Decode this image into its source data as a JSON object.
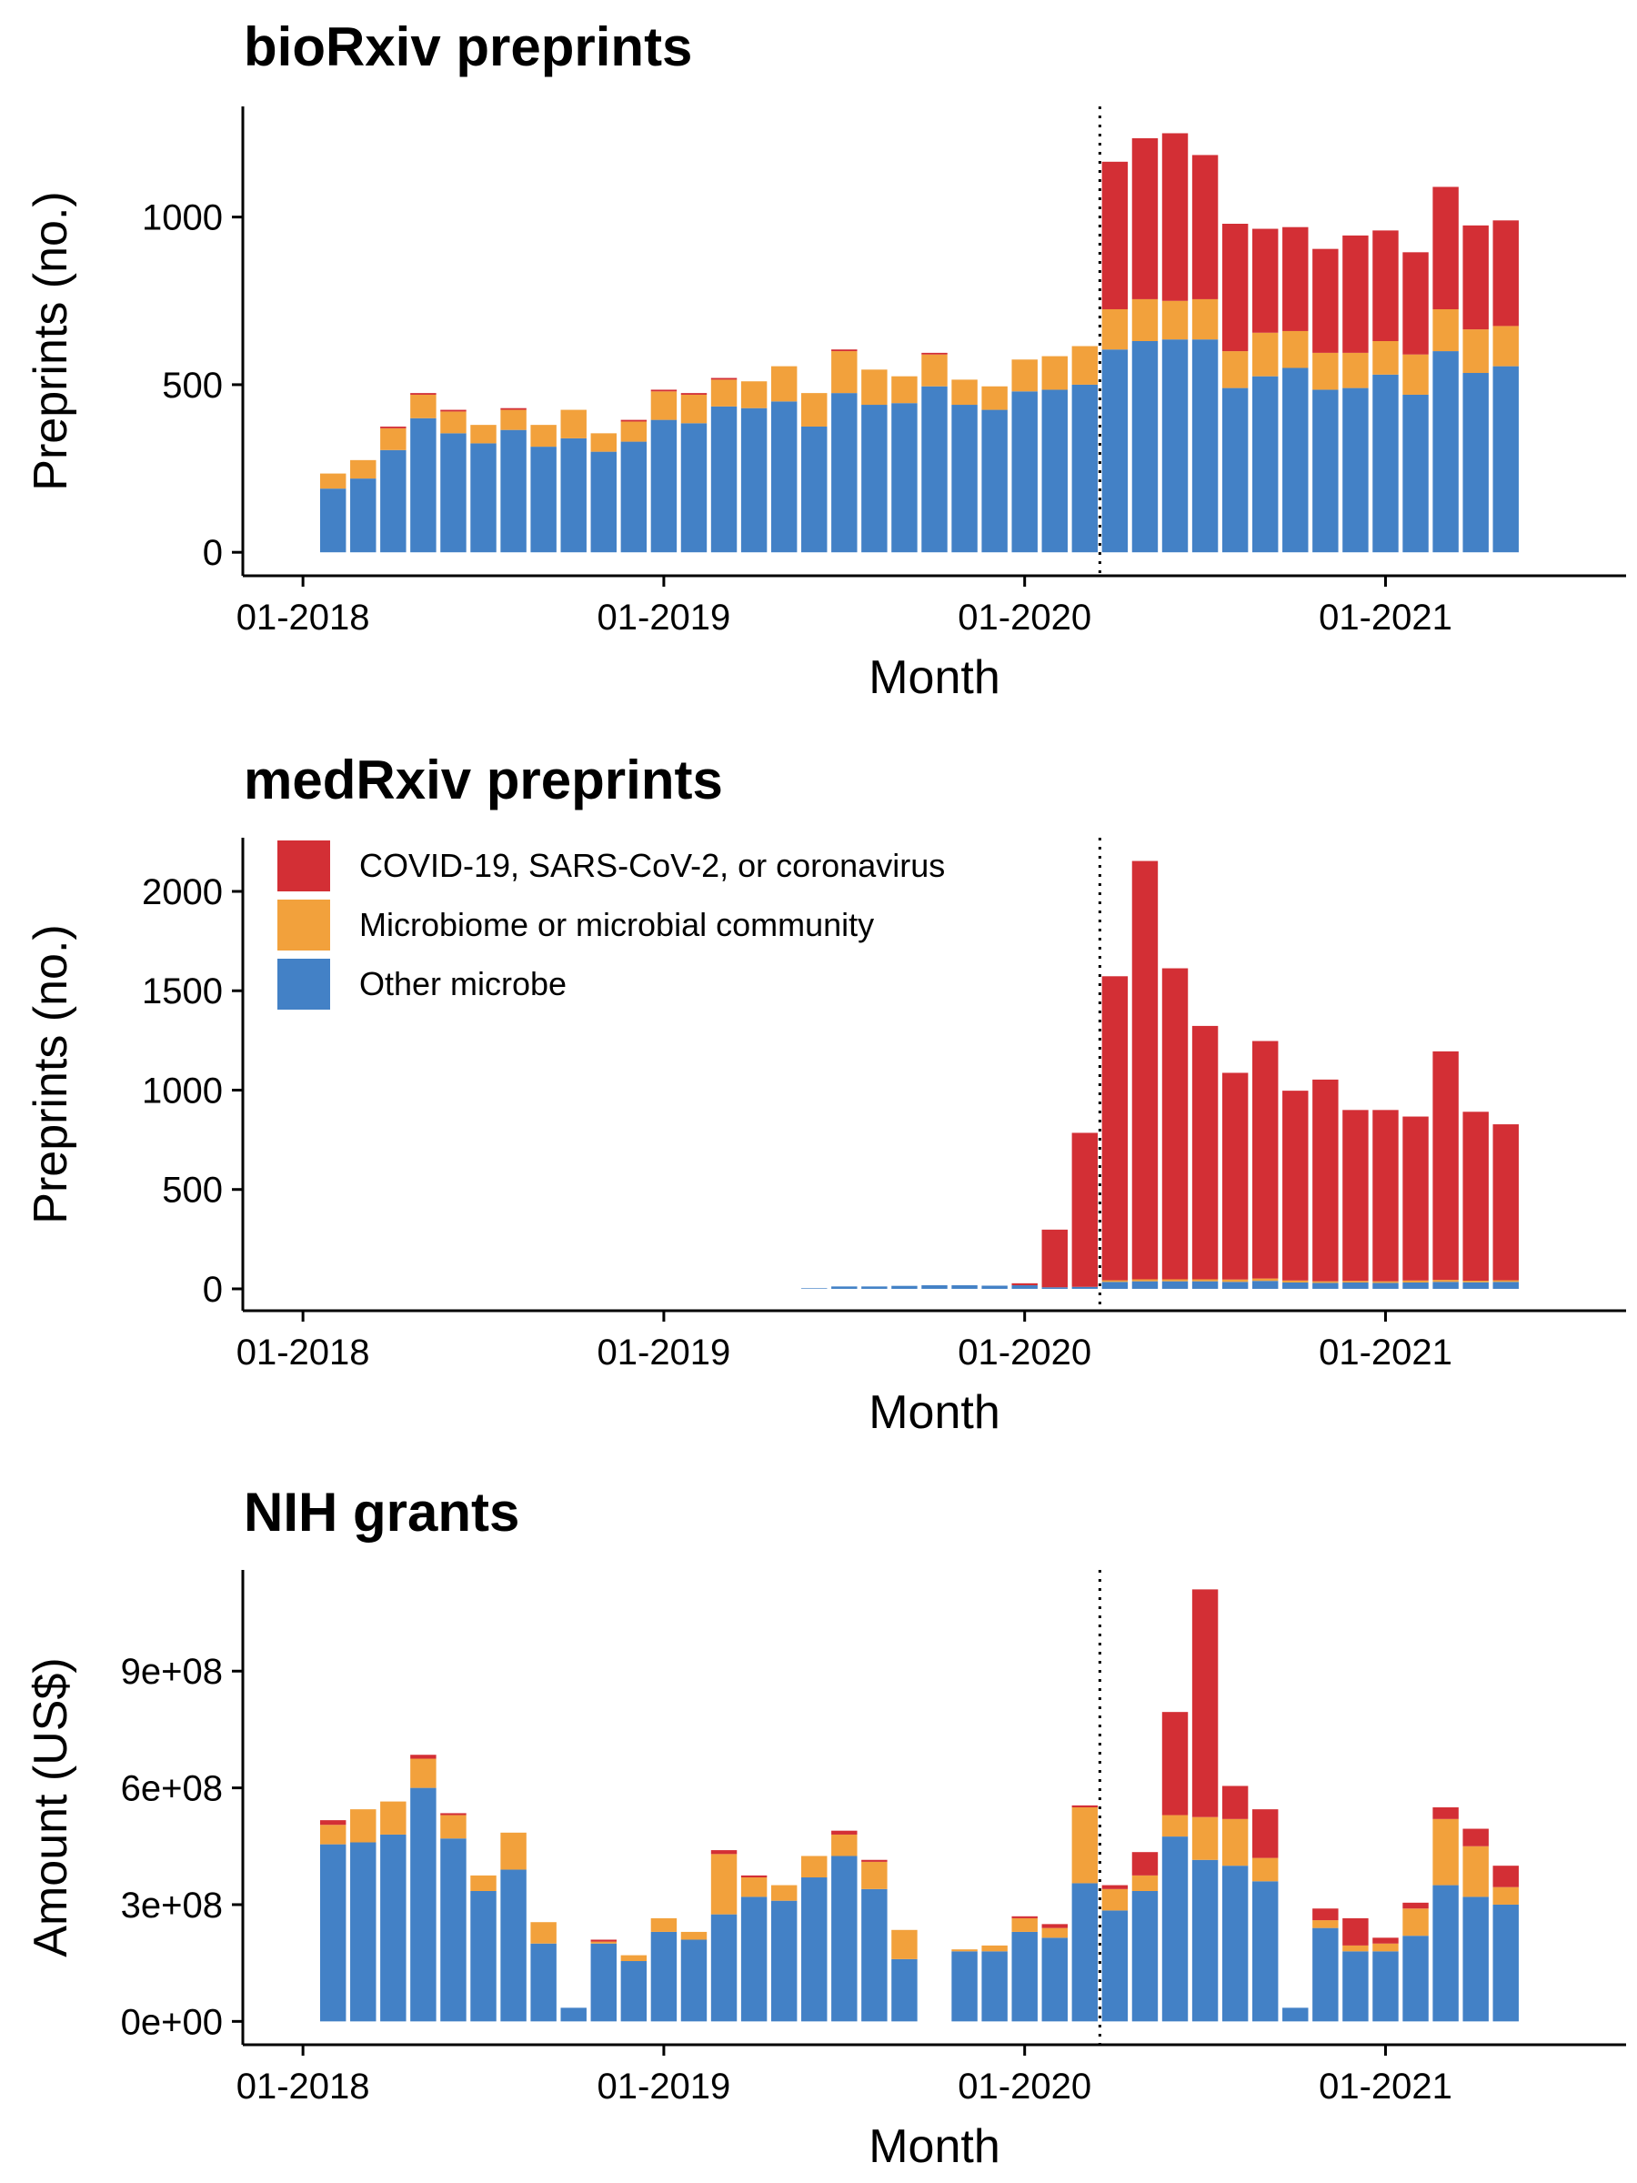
{
  "colors": {
    "covid": "#d32f35",
    "microbiome": "#f2a13c",
    "other": "#4381c6",
    "axis": "#000000"
  },
  "legend": {
    "items": [
      {
        "key": "covid",
        "label": "COVID-19, SARS-CoV-2, or coronavirus"
      },
      {
        "key": "microbiome",
        "label": "Microbiome or microbial community"
      },
      {
        "key": "other",
        "label": "Other microbe"
      }
    ]
  },
  "chart_data": [
    {
      "type": "bar",
      "stacked": true,
      "title": "bioRxiv preprints",
      "xlabel": "Month",
      "ylabel": "Preprints (no.)",
      "x_ticks": [
        "01-2018",
        "01-2019",
        "01-2020",
        "01-2021"
      ],
      "y_ticks": [
        "0",
        "500",
        "1000"
      ],
      "y_tick_values": [
        0,
        500,
        1000
      ],
      "ylim": [
        -70,
        1330
      ],
      "xlim": [
        "2017-11",
        "2021-09"
      ],
      "reference_line": "2020-03",
      "months": [
        "2018-02",
        "2018-03",
        "2018-04",
        "2018-05",
        "2018-06",
        "2018-07",
        "2018-08",
        "2018-09",
        "2018-10",
        "2018-11",
        "2018-12",
        "2019-01",
        "2019-02",
        "2019-03",
        "2019-04",
        "2019-05",
        "2019-06",
        "2019-07",
        "2019-08",
        "2019-09",
        "2019-10",
        "2019-11",
        "2019-12",
        "2020-01",
        "2020-02",
        "2020-03",
        "2020-04",
        "2020-05",
        "2020-06",
        "2020-07",
        "2020-08",
        "2020-09",
        "2020-10",
        "2020-11",
        "2020-12",
        "2021-01",
        "2021-02",
        "2021-03",
        "2021-04",
        "2021-05"
      ],
      "series": [
        {
          "key": "other",
          "name": "Other microbe",
          "values": [
            190,
            220,
            305,
            400,
            355,
            325,
            365,
            315,
            340,
            300,
            330,
            395,
            385,
            435,
            430,
            450,
            375,
            475,
            440,
            445,
            495,
            440,
            425,
            480,
            485,
            500,
            605,
            630,
            635,
            635,
            490,
            525,
            550,
            485,
            490,
            530,
            470,
            600,
            535,
            555
          ]
        },
        {
          "key": "microbiome",
          "name": "Microbiome or microbial community",
          "values": [
            45,
            55,
            65,
            70,
            65,
            55,
            60,
            65,
            85,
            55,
            60,
            85,
            85,
            80,
            80,
            105,
            100,
            125,
            105,
            80,
            95,
            75,
            70,
            95,
            100,
            115,
            120,
            125,
            115,
            120,
            110,
            130,
            110,
            110,
            105,
            100,
            120,
            125,
            130,
            120
          ]
        },
        {
          "key": "covid",
          "name": "COVID-19, SARS-CoV-2, or coronavirus",
          "values": [
            0,
            0,
            5,
            5,
            5,
            0,
            5,
            0,
            0,
            0,
            5,
            5,
            5,
            5,
            0,
            0,
            0,
            5,
            0,
            0,
            5,
            0,
            0,
            0,
            0,
            0,
            440,
            480,
            500,
            430,
            380,
            310,
            310,
            310,
            350,
            330,
            305,
            365,
            310,
            315
          ]
        }
      ]
    },
    {
      "type": "bar",
      "stacked": true,
      "title": "medRxiv preprints",
      "xlabel": "Month",
      "ylabel": "Preprints (no.)",
      "x_ticks": [
        "01-2018",
        "01-2019",
        "01-2020",
        "01-2021"
      ],
      "y_ticks": [
        "0",
        "500",
        "1000",
        "1500",
        "2000"
      ],
      "y_tick_values": [
        0,
        500,
        1000,
        1500,
        2000
      ],
      "ylim": [
        -110,
        2270
      ],
      "xlim": [
        "2017-11",
        "2021-09"
      ],
      "reference_line": "2020-03",
      "legend_position": "top-left",
      "months": [
        "2019-06",
        "2019-07",
        "2019-08",
        "2019-09",
        "2019-10",
        "2019-11",
        "2019-12",
        "2020-01",
        "2020-02",
        "2020-03",
        "2020-04",
        "2020-05",
        "2020-06",
        "2020-07",
        "2020-08",
        "2020-09",
        "2020-10",
        "2020-11",
        "2020-12",
        "2021-01",
        "2021-02",
        "2021-03",
        "2021-04",
        "2021-05"
      ],
      "series": [
        {
          "key": "other",
          "name": "Other microbe",
          "values": [
            3,
            12,
            12,
            15,
            18,
            18,
            16,
            18,
            8,
            10,
            35,
            38,
            38,
            38,
            35,
            40,
            32,
            30,
            32,
            30,
            32,
            35,
            33,
            35
          ]
        },
        {
          "key": "microbiome",
          "name": "Microbiome or microbial community",
          "values": [
            0,
            0,
            0,
            0,
            0,
            0,
            0,
            0,
            0,
            0,
            8,
            10,
            10,
            10,
            12,
            12,
            10,
            8,
            8,
            8,
            10,
            10,
            8,
            8
          ]
        },
        {
          "key": "covid",
          "name": "COVID-19, SARS-CoV-2, or coronavirus",
          "values": [
            0,
            0,
            0,
            0,
            0,
            0,
            0,
            10,
            290,
            775,
            1530,
            2105,
            1565,
            1275,
            1040,
            1195,
            955,
            1015,
            860,
            862,
            825,
            1150,
            850,
            785
          ]
        }
      ]
    },
    {
      "type": "bar",
      "stacked": true,
      "title": "NIH grants",
      "xlabel": "Month",
      "ylabel": "Amount (US$)",
      "x_ticks": [
        "01-2018",
        "01-2019",
        "01-2020",
        "01-2021"
      ],
      "y_ticks": [
        "0e+00",
        "3e+08",
        "6e+08",
        "9e+08"
      ],
      "y_tick_values": [
        0,
        300000000,
        600000000,
        900000000
      ],
      "ylim": [
        -60000000,
        1160000000
      ],
      "xlim": [
        "2017-11",
        "2021-09"
      ],
      "reference_line": "2020-03",
      "months": [
        "2018-02",
        "2018-03",
        "2018-04",
        "2018-05",
        "2018-06",
        "2018-07",
        "2018-08",
        "2018-09",
        "2018-10",
        "2018-11",
        "2018-12",
        "2019-01",
        "2019-02",
        "2019-03",
        "2019-04",
        "2019-05",
        "2019-06",
        "2019-07",
        "2019-08",
        "2019-09",
        "2019-10",
        "2019-11",
        "2019-12",
        "2020-01",
        "2020-02",
        "2020-03",
        "2020-04",
        "2020-05",
        "2020-06",
        "2020-07",
        "2020-08",
        "2020-09",
        "2020-10",
        "2020-11",
        "2020-12",
        "2021-01",
        "2021-02",
        "2021-03",
        "2021-04",
        "2021-05"
      ],
      "series": [
        {
          "key": "other",
          "name": "Other microbe",
          "values": [
            455000000,
            460000000,
            480000000,
            600000000,
            470000000,
            335000000,
            390000000,
            200000000,
            35000000,
            200000000,
            155000000,
            230000000,
            210000000,
            275000000,
            320000000,
            310000000,
            370000000,
            425000000,
            340000000,
            160000000,
            0,
            180000000,
            180000000,
            230000000,
            215000000,
            355000000,
            285000000,
            335000000,
            475000000,
            415000000,
            400000000,
            360000000,
            35000000,
            240000000,
            180000000,
            180000000,
            220000000,
            350000000,
            320000000,
            300000000
          ]
        },
        {
          "key": "microbiome",
          "name": "Microbiome or microbial community",
          "values": [
            50000000,
            85000000,
            85000000,
            75000000,
            60000000,
            40000000,
            95000000,
            55000000,
            0,
            5000000,
            15000000,
            35000000,
            20000000,
            155000000,
            50000000,
            40000000,
            55000000,
            55000000,
            70000000,
            75000000,
            0,
            5000000,
            15000000,
            35000000,
            25000000,
            195000000,
            55000000,
            40000000,
            55000000,
            110000000,
            120000000,
            60000000,
            0,
            20000000,
            15000000,
            20000000,
            70000000,
            170000000,
            130000000,
            45000000
          ]
        },
        {
          "key": "covid",
          "name": "COVID-19, SARS-CoV-2, or coronavirus",
          "values": [
            12000000,
            0,
            0,
            10000000,
            5000000,
            0,
            0,
            0,
            0,
            5000000,
            0,
            0,
            0,
            10000000,
            5000000,
            0,
            0,
            10000000,
            5000000,
            0,
            0,
            0,
            0,
            5000000,
            10000000,
            5000000,
            10000000,
            60000000,
            265000000,
            585000000,
            85000000,
            125000000,
            0,
            30000000,
            70000000,
            15000000,
            15000000,
            30000000,
            45000000,
            55000000
          ]
        }
      ]
    }
  ]
}
